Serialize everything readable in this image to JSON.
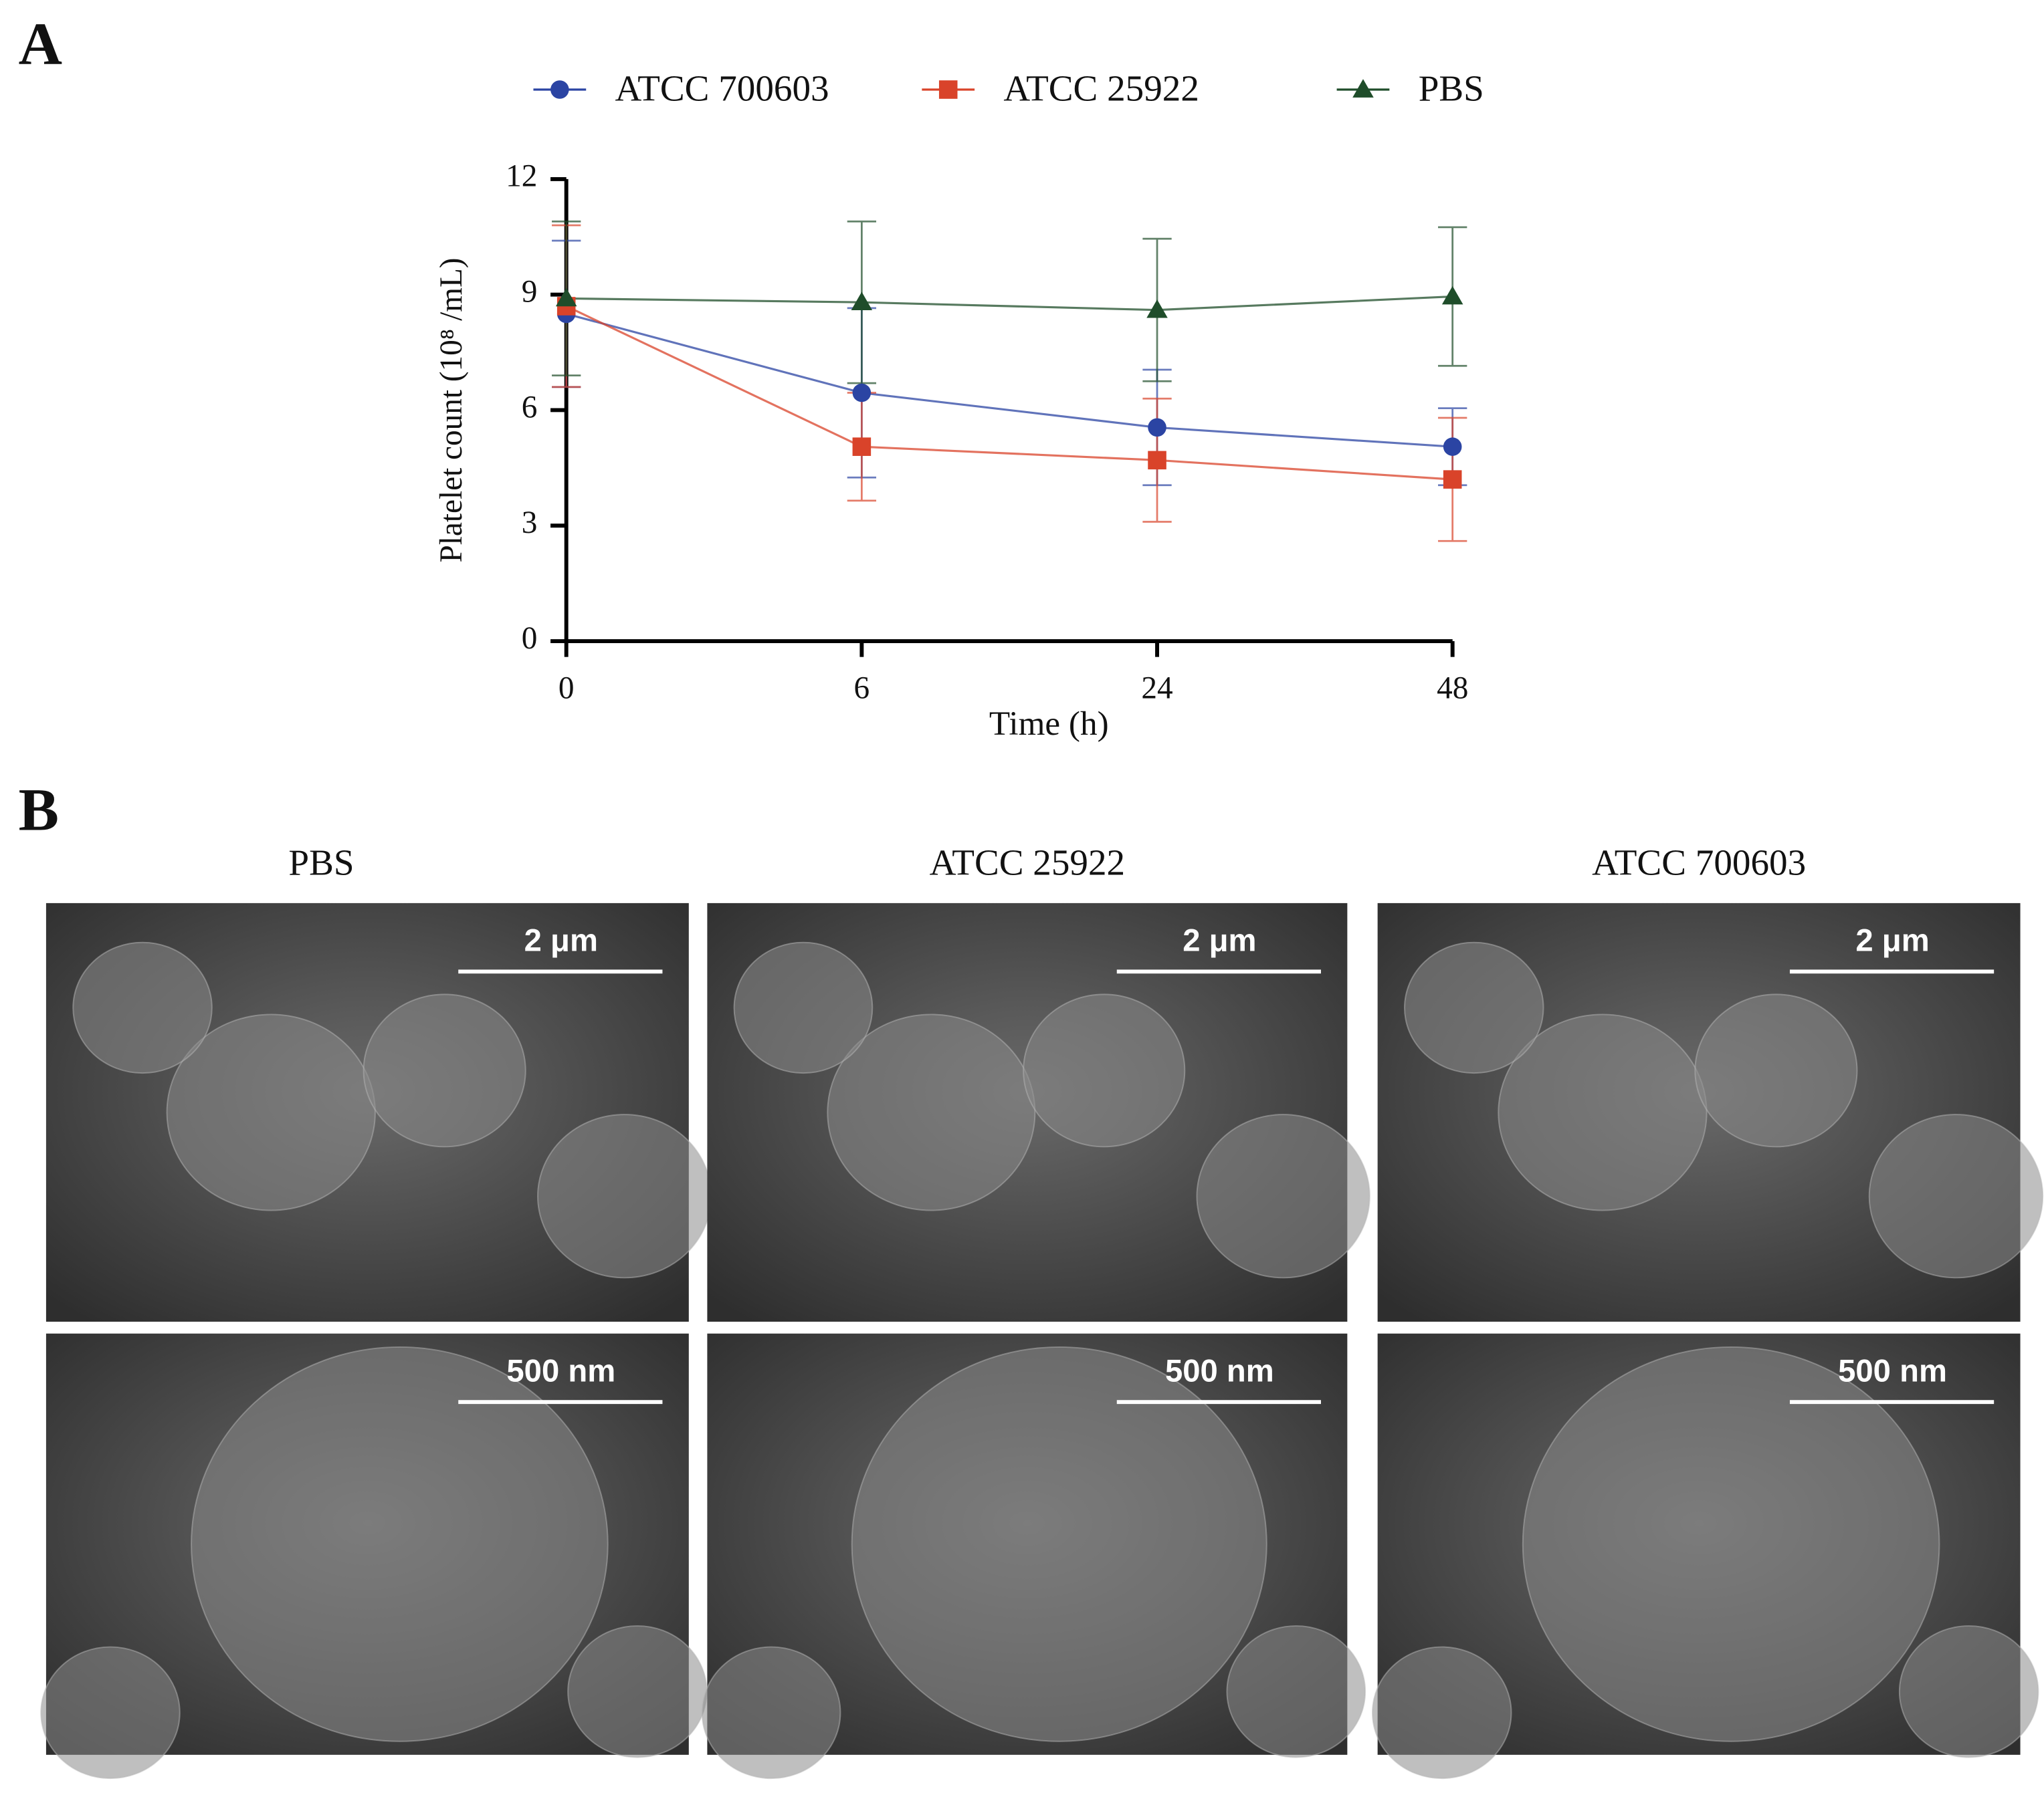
{
  "chart_data": {
    "type": "line",
    "x_label": "Time (h)",
    "y_label": "Platelet count (10⁸ /mL)",
    "categories": [
      "0",
      "6",
      "24",
      "48"
    ],
    "series": [
      {
        "name": "ATCC 700603",
        "color": "#2b44a3",
        "marker": "circle",
        "values": [
          8.5,
          6.45,
          5.55,
          5.05
        ],
        "errors": [
          1.9,
          2.2,
          1.5,
          1.0
        ]
      },
      {
        "name": "ATCC 25922",
        "color": "#d9432a",
        "marker": "square",
        "values": [
          8.7,
          5.05,
          4.7,
          4.2
        ],
        "errors": [
          2.1,
          1.4,
          1.6,
          1.6
        ]
      },
      {
        "name": "PBS",
        "color": "#1f4d2a",
        "marker": "triangle",
        "values": [
          8.9,
          8.8,
          8.6,
          8.95
        ],
        "errors": [
          2.0,
          2.1,
          1.85,
          1.8
        ]
      }
    ],
    "ylim": [
      0,
      12
    ],
    "yticks": [
      0,
      3,
      6,
      9,
      12
    ],
    "legend": "top"
  },
  "panels": {
    "label_a": "A",
    "label_b": "B",
    "columns": [
      "PBS",
      "ATCC 25922",
      "ATCC 700603"
    ],
    "scale_bars": [
      [
        "2 μm",
        "500 nm"
      ],
      [
        "2 μm",
        "500 nm"
      ],
      [
        "2 μm",
        "500 nm"
      ]
    ]
  }
}
